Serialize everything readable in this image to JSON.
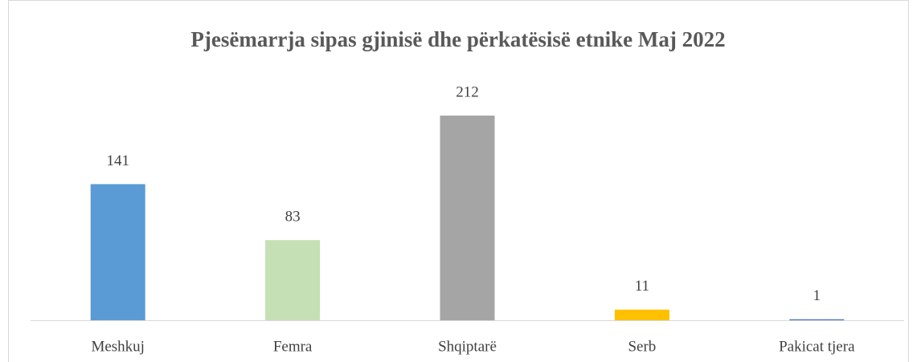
{
  "chart_data": {
    "type": "bar",
    "title": "Pjesëmarrja  sipas gjinisë dhe përkatësisë etnike Maj 2022",
    "categories": [
      "Meshkuj",
      "Femra",
      "Shqiptarë",
      "Serb",
      "Pakicat tjera"
    ],
    "values": [
      141,
      83,
      212,
      11,
      1
    ],
    "colors": [
      "#5b9bd5",
      "#c5e0b4",
      "#a5a5a5",
      "#ffc000",
      "#4472c4"
    ]
  }
}
